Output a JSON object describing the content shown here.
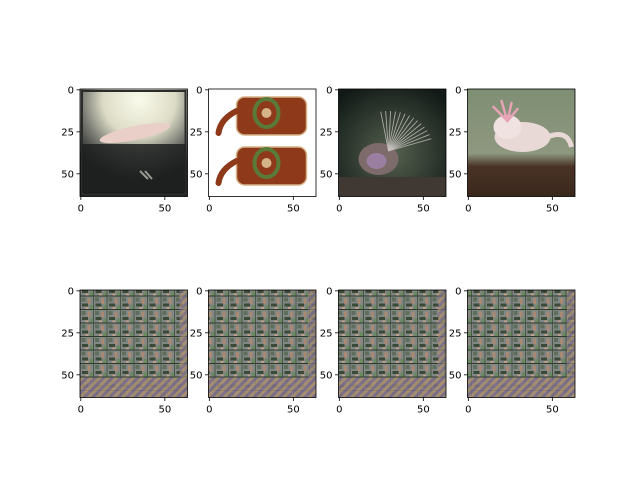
{
  "chart_data": {
    "type": "image_grid",
    "rows": 2,
    "cols": 4,
    "x_ticks": [
      0,
      50
    ],
    "y_ticks": [
      0,
      25,
      50
    ],
    "xlim": [
      -0.5,
      63.5
    ],
    "ylim": [
      63.5,
      -0.5
    ],
    "panels": [
      {
        "content": "bright-lamp-photo",
        "palette": [
          "#f3f1e0",
          "#1a1c1c",
          "#e9cfc8",
          "#8d8c83"
        ]
      },
      {
        "content": "two-brown-purses",
        "palette": [
          "#ffffff",
          "#8e3a1a",
          "#5a7a3a",
          "#d6b48a"
        ]
      },
      {
        "content": "lionfish-photo",
        "palette": [
          "#1f2a25",
          "#7d6a6a",
          "#c9c2c0",
          "#584f5c"
        ]
      },
      {
        "content": "axolotl-photo",
        "palette": [
          "#7a8a70",
          "#e8d8d6",
          "#4a3428",
          "#9aa08a"
        ]
      },
      {
        "content": "generated-pattern",
        "palette": [
          "#7e8482",
          "#4f6d4d",
          "#b08a72",
          "#2f3a2c"
        ]
      },
      {
        "content": "generated-pattern",
        "palette": [
          "#7e8482",
          "#4f6d4d",
          "#b08a72",
          "#2f3a2c"
        ]
      },
      {
        "content": "generated-pattern",
        "palette": [
          "#7e8482",
          "#4f6d4d",
          "#b08a72",
          "#2f3a2c"
        ]
      },
      {
        "content": "generated-pattern",
        "palette": [
          "#7e8482",
          "#4f6d4d",
          "#b08a72",
          "#2f3a2c"
        ]
      }
    ]
  }
}
